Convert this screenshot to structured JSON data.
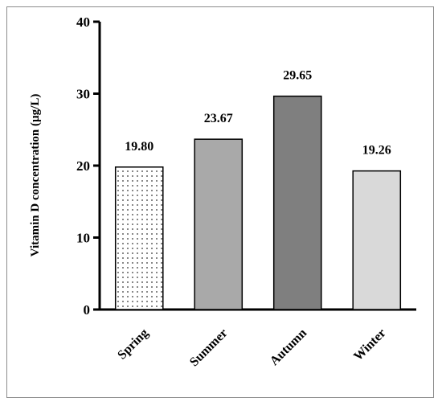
{
  "chart_data": {
    "type": "bar",
    "categories": [
      "Spring",
      "Summer",
      "Autumn",
      "Winter"
    ],
    "values": [
      19.8,
      23.67,
      29.65,
      19.26
    ],
    "value_labels": [
      "19.80",
      "23.67",
      "29.65",
      "19.26"
    ],
    "title": "",
    "xlabel": "",
    "ylabel": "Vitamin D concentration (µg/L)",
    "ylim": [
      0,
      40
    ],
    "yticks": [
      0,
      10,
      20,
      30,
      40
    ],
    "grid": false,
    "bar_colors": [
      "#ffffff",
      "#a9a9a9",
      "#7f7f7f",
      "#d9d9d9"
    ],
    "bar_patterns": [
      "dotted",
      "solid",
      "solid",
      "solid"
    ]
  }
}
